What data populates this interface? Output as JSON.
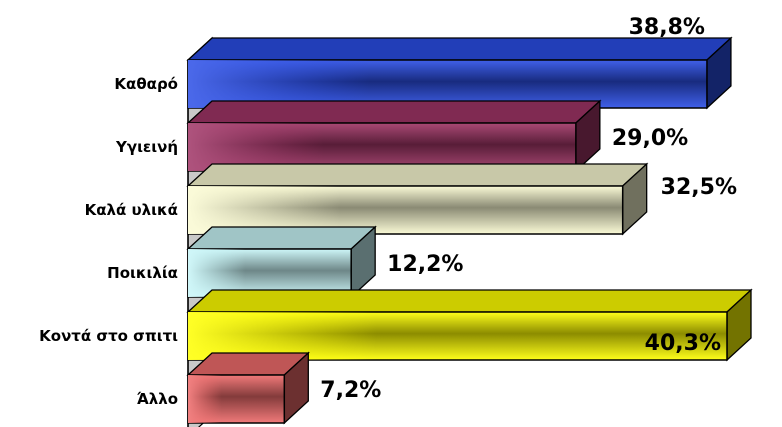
{
  "chart_data": {
    "type": "bar",
    "orientation": "horizontal",
    "style": "3d",
    "categories": [
      "Καθαρό",
      "Υγιεινή",
      "Καλά υλικά",
      "Ποικιλία",
      "Κοντά στο σπιτι",
      "Άλλο"
    ],
    "values": [
      38.8,
      29.0,
      32.5,
      12.2,
      40.3,
      7.2
    ],
    "value_labels": [
      "38,8%",
      "29,0%",
      "32,5%",
      "12,2%",
      "40,3%",
      "7,2%"
    ],
    "colors": [
      "#2b4ee6",
      "#a03566",
      "#fafad2",
      "#c8f6f8",
      "#ffff00",
      "#ef6b6b"
    ],
    "xlim": [
      0,
      40.3
    ],
    "grid": false,
    "title": "",
    "xlabel": "",
    "ylabel": ""
  }
}
